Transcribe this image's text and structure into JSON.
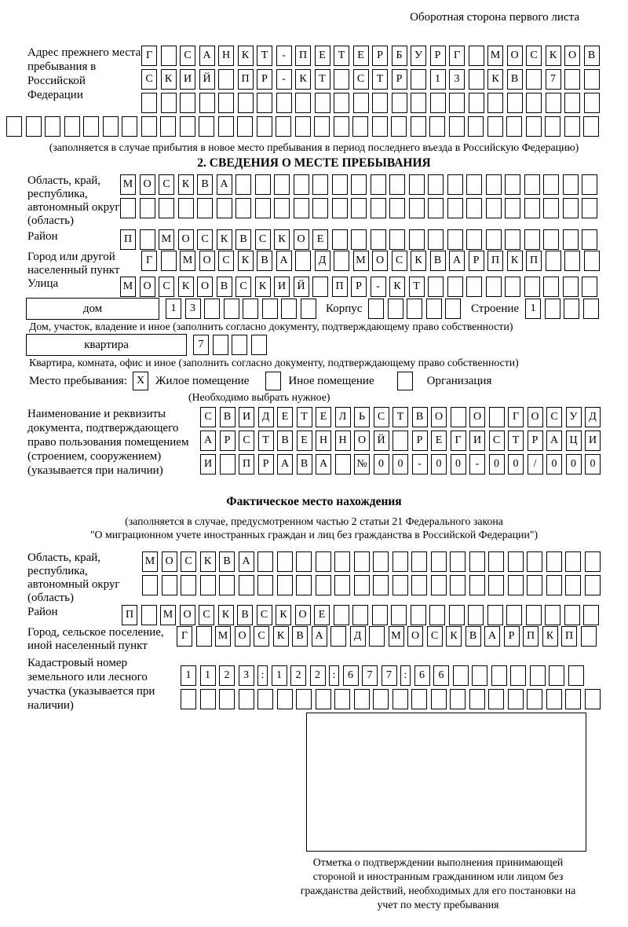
{
  "header": {
    "note": "Оборотная сторона первого листа"
  },
  "prev": {
    "label": "Адрес прежнего места пребывания в Российской Федерации",
    "rows": [
      {
        "text": "Г САНКТ-ПЕТЕРБУРГ МОСКОВ",
        "len": 24
      },
      {
        "text": "СКИЙ ПР-КТ СТР 13 КВ 7",
        "len": 24
      },
      {
        "text": "",
        "len": 24
      }
    ],
    "full": {
      "text": "",
      "len": 31
    },
    "caption": "(заполняется в случае прибытия в новое место пребывания в период последнего въезда в Российскую Федерацию)"
  },
  "sec2": {
    "title": "2. СВЕДЕНИЯ О МЕСТЕ ПРЕБЫВАНИЯ",
    "region": {
      "label": "Область, край, республика, автономный округ (область)",
      "rows": [
        {
          "text": "МОСКВА",
          "len": 25
        },
        {
          "text": "",
          "len": 25
        }
      ]
    },
    "district": {
      "label": "Район",
      "row": {
        "text": "П МОСКВСКОЕ",
        "len": 25
      }
    },
    "city": {
      "label": "Город или другой населенный пункт",
      "row": {
        "text": "Г МОСКВА Д МОСКВАРПКП",
        "len": 24
      }
    },
    "street": {
      "label": "Улица",
      "row": {
        "text": "МОСКОВСКИЙ ПР-КТ",
        "len": 25
      }
    },
    "house": {
      "box_label": "дом",
      "cells": {
        "text": "13",
        "len": 8
      },
      "korpus_label": "Корпус",
      "korpus_cells": {
        "text": "",
        "len": 5
      },
      "stroenie_label": "Строение",
      "stroenie_cells": {
        "text": "1",
        "len": 4
      }
    },
    "house_caption": "Дом, участок, владение и иное (заполнить согласно документу, подтверждающему право собственности)",
    "apartment": {
      "box_label": "квартира",
      "cells": {
        "text": "7",
        "len": 4
      }
    },
    "apartment_caption": "Квартира, комната, офис и иное (заполнить согласно документу, подтверждающему право собственности)",
    "stay": {
      "label": "Место пребывания:",
      "options": [
        {
          "mark": "X",
          "label": "Жилое помещение"
        },
        {
          "mark": "",
          "label": "Иное помещение"
        },
        {
          "mark": "",
          "label": "Организация"
        }
      ],
      "note": "(Необходимо выбрать нужное)"
    },
    "document": {
      "label": "Наименование и реквизиты документа, подтверждающего право пользования помещением (строением, сооружением) (указывается при наличии)",
      "rows": [
        {
          "text": "СВИДЕТЕЛЬСТВО О ГОСУД",
          "len": 21
        },
        {
          "text": "АРСТВЕННОЙ РЕГИСТРАЦИ",
          "len": 21
        },
        {
          "text": "И ПРАВА №00-00-00/000",
          "len": 21
        }
      ]
    }
  },
  "act": {
    "title": "Фактическое место нахождения",
    "cap1": "(заполняется в случае, предусмотренном частью 2 статьи 21 Федерального закона",
    "cap2": "\"О миграционном учете иностранных граждан и лиц без гражданства в Российской Федерации\")",
    "region": {
      "label": "Область, край, республика, автономный округ (область)",
      "rows": [
        {
          "text": "МОСКВА",
          "len": 24
        },
        {
          "text": "",
          "len": 24
        }
      ]
    },
    "district": {
      "label": "Район",
      "row": {
        "text": "П МОСКВСКОЕ",
        "len": 25
      }
    },
    "city": {
      "label": "Город, сельское поселение, иной населенный пункт",
      "row": {
        "text": "Г МОСКВА Д МОСКВАРПКП",
        "len": 22
      }
    },
    "cadastral": {
      "label": "Кадастровый номер земельного или лесного участка (указывается при наличии)",
      "rows": [
        {
          "text": "1123:122:677:66",
          "len": 22
        },
        {
          "text": "",
          "len": 22
        }
      ]
    },
    "stamp_caption": "Отметка о подтверждении выполнения принимающей стороной и иностранным гражданином или лицом без гражданства действий, необходимых для его постановки на учет по месту пребывания"
  }
}
